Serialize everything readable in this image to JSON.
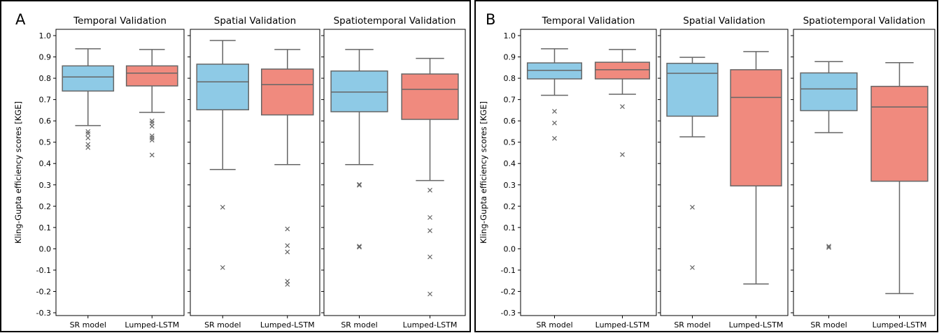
{
  "figure": {
    "letters": [
      "A",
      "B"
    ]
  },
  "chart_data": [
    {
      "type": "box",
      "figure_letter": "A",
      "ylabel": "Kling-Gupta efficiency scores [KGE]",
      "ylim": [
        -0.3,
        1.0
      ],
      "yticks": [
        -0.3,
        -0.2,
        -0.1,
        0.0,
        0.1,
        0.2,
        0.3,
        0.4,
        0.5,
        0.6,
        0.7,
        0.8,
        0.9,
        1.0
      ],
      "colors": {
        "SR model": "#8ecae6",
        "Lumped-LSTM": "#f08a7e"
      },
      "panels": [
        {
          "title": "Temporal Validation",
          "categories": [
            "SR model",
            "Lumped-LSTM"
          ],
          "boxes": [
            {
              "name": "SR model",
              "whisker_low": 0.578,
              "q1": 0.74,
              "median": 0.806,
              "q3": 0.858,
              "whisker_high": 0.938,
              "outliers": [
                0.55,
                0.54,
                0.52,
                0.49,
                0.475
              ]
            },
            {
              "name": "Lumped-LSTM",
              "whisker_low": 0.64,
              "q1": 0.764,
              "median": 0.824,
              "q3": 0.858,
              "whisker_high": 0.935,
              "outliers": [
                0.6,
                0.59,
                0.575,
                0.53,
                0.52,
                0.51,
                0.44
              ]
            }
          ]
        },
        {
          "title": "Spatial Validation",
          "categories": [
            "SR model",
            "Lumped-LSTM"
          ],
          "boxes": [
            {
              "name": "SR model",
              "whisker_low": 0.372,
              "q1": 0.652,
              "median": 0.783,
              "q3": 0.866,
              "whisker_high": 0.977,
              "outliers": [
                0.195,
                -0.088
              ]
            },
            {
              "name": "Lumped-LSTM",
              "whisker_low": 0.395,
              "q1": 0.628,
              "median": 0.77,
              "q3": 0.843,
              "whisker_high": 0.935,
              "outliers": [
                0.093,
                0.015,
                -0.015,
                -0.152,
                -0.167
              ]
            }
          ]
        },
        {
          "title": "Spatiotemporal Validation",
          "categories": [
            "SR model",
            "Lumped-LSTM"
          ],
          "boxes": [
            {
              "name": "SR model",
              "whisker_low": 0.395,
              "q1": 0.643,
              "median": 0.735,
              "q3": 0.834,
              "whisker_high": 0.935,
              "outliers": [
                0.302,
                0.298,
                0.012,
                0.008
              ]
            },
            {
              "name": "Lumped-LSTM",
              "whisker_low": 0.32,
              "q1": 0.607,
              "median": 0.748,
              "q3": 0.82,
              "whisker_high": 0.893,
              "outliers": [
                0.275,
                0.147,
                0.085,
                -0.038,
                -0.212
              ]
            }
          ]
        }
      ]
    },
    {
      "type": "box",
      "figure_letter": "B",
      "ylabel": "Kling-Gupta efficiency scores [KGE]",
      "ylim": [
        -0.3,
        1.0
      ],
      "yticks": [
        -0.3,
        -0.2,
        -0.1,
        0.0,
        0.1,
        0.2,
        0.3,
        0.4,
        0.5,
        0.6,
        0.7,
        0.8,
        0.9,
        1.0
      ],
      "colors": {
        "SR model": "#8ecae6",
        "Lumped-LSTM": "#f08a7e"
      },
      "panels": [
        {
          "title": "Temporal Validation",
          "categories": [
            "SR model",
            "Lumped-LSTM"
          ],
          "boxes": [
            {
              "name": "SR model",
              "whisker_low": 0.72,
              "q1": 0.797,
              "median": 0.837,
              "q3": 0.872,
              "whisker_high": 0.938,
              "outliers": [
                0.645,
                0.59,
                0.518
              ]
            },
            {
              "name": "Lumped-LSTM",
              "whisker_low": 0.725,
              "q1": 0.797,
              "median": 0.84,
              "q3": 0.875,
              "whisker_high": 0.935,
              "outliers": [
                0.667,
                0.442
              ]
            }
          ]
        },
        {
          "title": "Spatial Validation",
          "categories": [
            "SR model",
            "Lumped-LSTM"
          ],
          "boxes": [
            {
              "name": "SR model",
              "whisker_low": 0.525,
              "q1": 0.622,
              "median": 0.823,
              "q3": 0.87,
              "whisker_high": 0.898,
              "outliers": [
                0.195,
                -0.088
              ]
            },
            {
              "name": "Lumped-LSTM",
              "whisker_low": -0.165,
              "q1": 0.295,
              "median": 0.71,
              "q3": 0.84,
              "whisker_high": 0.925,
              "outliers": []
            }
          ]
        },
        {
          "title": "Spatiotemporal Validation",
          "categories": [
            "SR model",
            "Lumped-LSTM"
          ],
          "boxes": [
            {
              "name": "SR model",
              "whisker_low": 0.545,
              "q1": 0.648,
              "median": 0.75,
              "q3": 0.825,
              "whisker_high": 0.878,
              "outliers": [
                0.012,
                0.006
              ]
            },
            {
              "name": "Lumped-LSTM",
              "whisker_low": -0.21,
              "q1": 0.317,
              "median": 0.665,
              "q3": 0.762,
              "whisker_high": 0.873,
              "outliers": []
            }
          ]
        }
      ]
    }
  ]
}
